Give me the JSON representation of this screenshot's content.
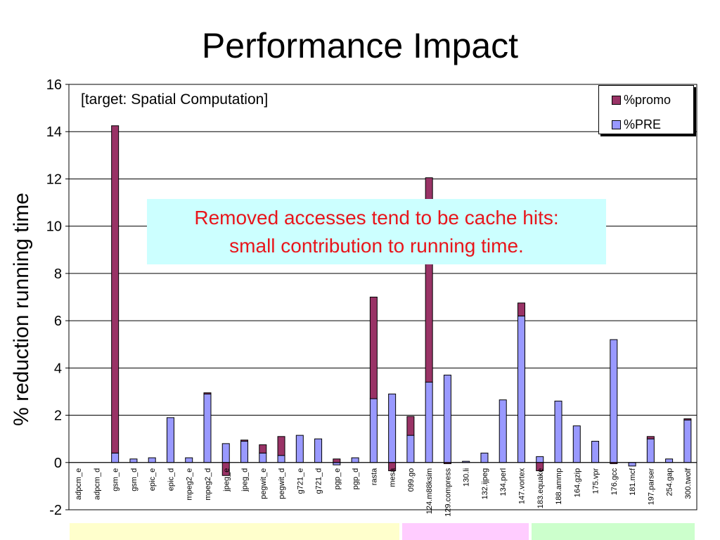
{
  "slide": {
    "title": "Performance Impact",
    "note": "[target: Spatial Computation]",
    "callout_line1": "Removed accesses tend to be cache hits:",
    "callout_line2": "small contribution to running time."
  },
  "colors": {
    "promo": "#993366",
    "pre": "#9999ff",
    "callout_bg": "#ccffff",
    "callout_text": "#e8151b",
    "band_media": "#ffffcc",
    "band_int95": "#ffccff",
    "band_int2000": "#ccffcc"
  },
  "chart_data": {
    "type": "bar",
    "stacked": true,
    "ylabel": "% reduction running time",
    "ylim": [
      -2,
      16
    ],
    "yticks": [
      -2,
      0,
      2,
      4,
      6,
      8,
      10,
      12,
      14,
      16
    ],
    "grid": true,
    "legend_position": "top-right",
    "categories": [
      "adpcm_e",
      "adpcm_d",
      "gsm_e",
      "gsm_d",
      "epic_e",
      "epic_d",
      "mpeg2_e",
      "mpeg2_d",
      "jpeg_e",
      "jpeg_d",
      "pegwit_e",
      "pegwit_d",
      "g721_e",
      "g721_d",
      "pgp_e",
      "pgp_d",
      "rasta",
      "mesa",
      "099.go",
      "124.m88ksim",
      "129.compress",
      "130.li",
      "132.ijpeg",
      "134.perl",
      "147.vortex",
      "183.equake",
      "188.ammp",
      "164.gzip",
      "175.vpr",
      "176.gcc",
      "181.mcf",
      "197.parser",
      "254.gap",
      "300.twolf"
    ],
    "series": [
      {
        "name": "%PRE",
        "values": [
          0,
          0,
          0.4,
          0.15,
          0.2,
          1.9,
          0.2,
          2.9,
          0.8,
          0.9,
          0.4,
          0.3,
          1.15,
          1.0,
          -0.1,
          0.2,
          2.7,
          2.9,
          1.15,
          3.4,
          3.7,
          0.05,
          0.4,
          2.65,
          6.2,
          0.25,
          2.6,
          1.55,
          0.9,
          5.2,
          -0.15,
          1.0,
          0.15,
          1.8
        ]
      },
      {
        "name": "%promo",
        "values": [
          0,
          0,
          13.85,
          0,
          0,
          0,
          0,
          0.05,
          -0.55,
          0.05,
          0.35,
          0.8,
          0,
          0,
          0.15,
          0,
          4.3,
          -0.35,
          0.8,
          8.65,
          -0.05,
          0,
          0,
          0,
          0.55,
          -0.35,
          0,
          0,
          0,
          -0.05,
          0,
          0.1,
          0,
          0.05
        ]
      }
    ],
    "category_groups": [
      {
        "first": 0,
        "last": 17
      },
      {
        "first": 18,
        "last": 24
      },
      {
        "first": 25,
        "last": 33
      }
    ]
  }
}
